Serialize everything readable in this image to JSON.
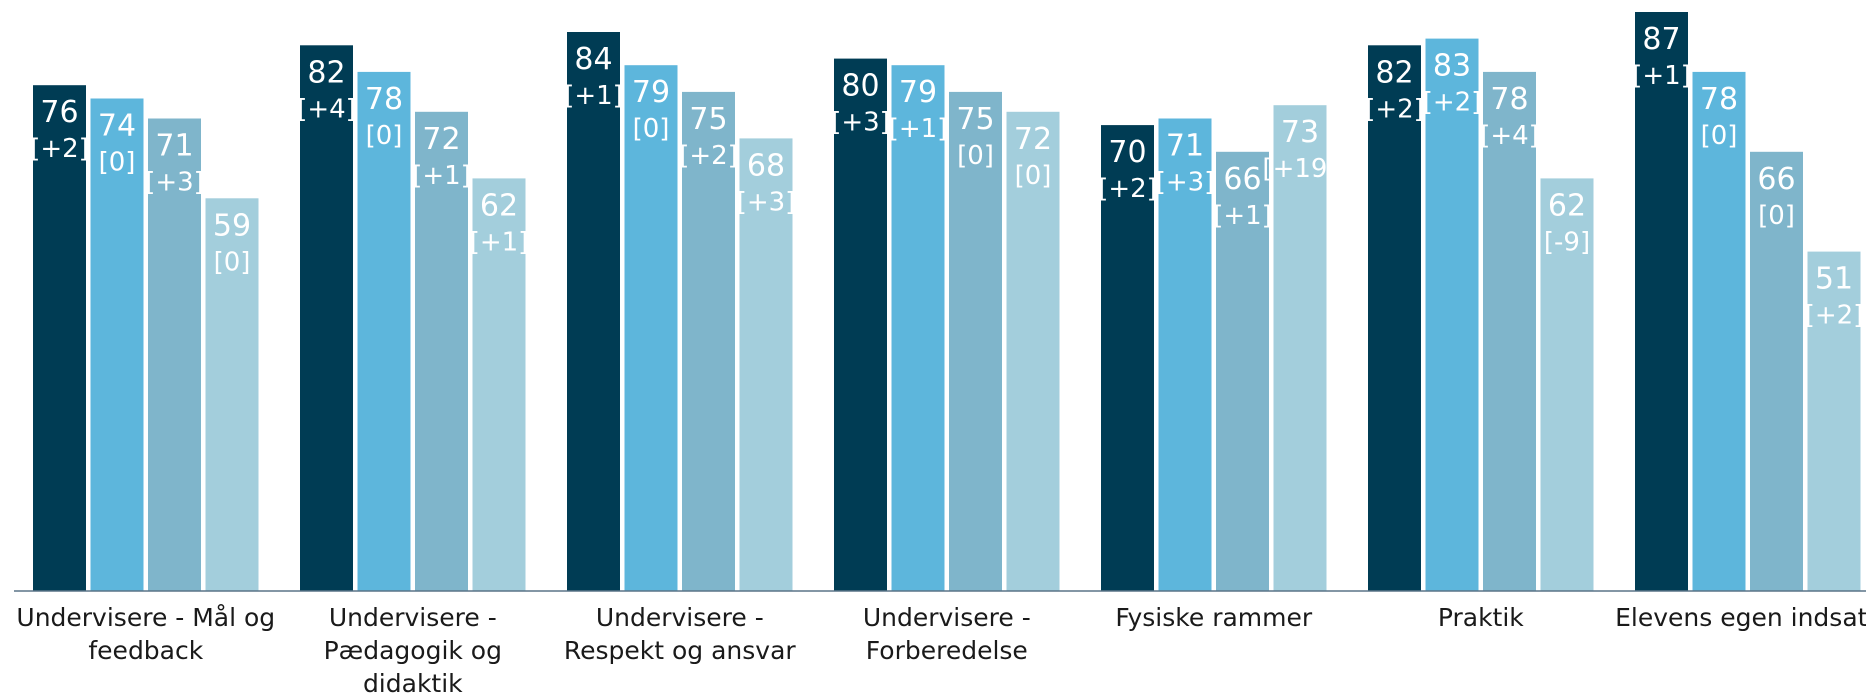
{
  "chart_data": {
    "type": "bar",
    "title": "",
    "xlabel": "",
    "ylabel": "",
    "ylim": [
      0,
      100
    ],
    "grid": false,
    "legend": "none",
    "categories": [
      [
        "Undervisere - Mål og",
        "feedback"
      ],
      [
        "Undervisere -",
        "Pædagogik og",
        "didaktik"
      ],
      [
        "Undervisere -",
        "Respekt og ansvar"
      ],
      [
        "Undervisere -",
        "Forberedelse"
      ],
      [
        "Fysiske rammer"
      ],
      [
        "Praktik"
      ],
      [
        "Elevens egen indsats"
      ]
    ],
    "series": [
      {
        "values": [
          76,
          82,
          84,
          80,
          70,
          82,
          87
        ],
        "changes": [
          "[+2]",
          "[+4]",
          "[+1]",
          "[+3]",
          "[+2]",
          "[+2]",
          "[+1]"
        ],
        "color": "#003c54"
      },
      {
        "values": [
          74,
          78,
          79,
          79,
          71,
          83,
          78
        ],
        "changes": [
          "[0]",
          "[0]",
          "[0]",
          "[+1]",
          "[+3]",
          "[+2]",
          "[0]"
        ],
        "color": "#5db6dc"
      },
      {
        "values": [
          71,
          72,
          75,
          75,
          66,
          78,
          66
        ],
        "changes": [
          "[+3]",
          "[+1]",
          "[+2]",
          "[0]",
          "[+1]",
          "[+4]",
          "[0]"
        ],
        "color": "#7fb5cb"
      },
      {
        "values": [
          59,
          62,
          68,
          72,
          73,
          62,
          51
        ],
        "changes": [
          "[0]",
          "[+1]",
          "[+3]",
          "[0]",
          "[+19]",
          "[-9]",
          "[+2]"
        ],
        "color": "#a3cedc"
      }
    ],
    "axis_color": "#5a7487"
  }
}
